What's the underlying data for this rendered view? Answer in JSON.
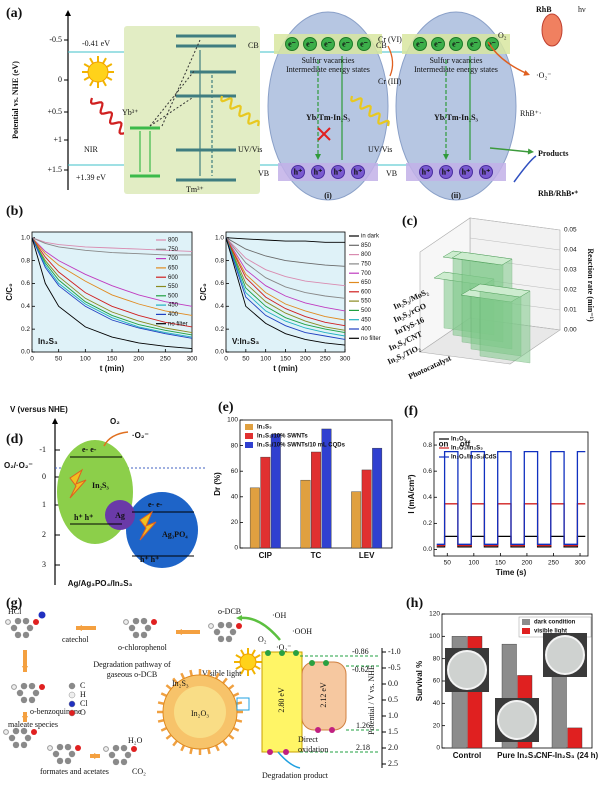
{
  "panels": [
    "(a)",
    "(b)",
    "(c)",
    "(d)",
    "(e)",
    "(f)",
    "(g)",
    "(h)"
  ],
  "a": {
    "axis": "Potential vs. NHE (eV)",
    "ticks": [
      "-0.5",
      "0",
      "+0.5",
      "+1",
      "+1.5"
    ],
    "cb_level": "-0.41 eV",
    "vb_level": "+1.39 eV",
    "nir": "NIR",
    "yb": "Yb³⁺",
    "tm": "Tm³⁺",
    "uvvis": [
      "UV/Vis",
      "UV/Vis"
    ],
    "cb": [
      "CB",
      "CB"
    ],
    "vb": [
      "VB",
      "VB"
    ],
    "vacancies": [
      "Sulfur vacancies",
      "Sulfur vacancies"
    ],
    "states": [
      "Intermediate energy states",
      "Intermediate energy states"
    ],
    "catalyst": [
      "Yb/Tm-In₂S₃",
      "Yb/Tm-In₂S₃"
    ],
    "cases": [
      "(i)",
      "(ii)"
    ],
    "electron": "e⁻",
    "hole": "h⁺",
    "cr6": "Cr (VI)",
    "cr3": "Cr (III)",
    "rhb": "RhB",
    "hv": "hν",
    "o2": "O₂",
    "superoxide": "·O₂⁻",
    "rhb_radical": "RhB⁺·",
    "products": "Products",
    "rhb_pair": "RhB/RhB•⁺"
  },
  "d": {
    "axis": "V (versus NHE)",
    "ticks": [
      "-1",
      "0",
      "1",
      "2",
      "3"
    ],
    "couple": "O₂/·O₂⁻",
    "o2": "O₂",
    "superoxide": "·O₂⁻",
    "in2s3": "In₂S₃",
    "ag": "Ag",
    "ag3po4": "Ag₃PO₄",
    "electrons": "e- e-",
    "holes": "h⁺ h⁺",
    "caption": "Ag/Ag₃PO₄/In₂S₃"
  },
  "g": {
    "hcl": "HCl",
    "catechol": "catechol",
    "chlorophenol": "o-chlorophenol",
    "dcb": "o-DCB",
    "pathway": [
      "Degradation pathway of",
      "gaseous o-DCB"
    ],
    "benzoquinone": "o-benzoquinone",
    "atoms": [
      "C",
      "H",
      "Cl",
      "O"
    ],
    "maleate": "maleate species",
    "formates": "formates and acetates",
    "h2o": "H₂O",
    "co2": "CO₂",
    "light": "Visible light",
    "oh": "·OH",
    "ooh": "·OOH",
    "o2": "O₂",
    "superoxide": "·O₂⁻",
    "shell": "In₂S₃",
    "core": "In₂O₃",
    "gap1": "2.80 eV",
    "gap2": "2.12 eV",
    "levels": [
      "-0.86",
      "-0.62",
      "1.26",
      "2.18"
    ],
    "axis": "Potential / V vs. NHE",
    "ticks": [
      "-1.0",
      "-0.5",
      "0.0",
      "0.5",
      "1.0",
      "1.5",
      "2.0",
      "2.5"
    ],
    "oxidation": [
      "Direct",
      "oxidation"
    ],
    "product": "Degradation product"
  },
  "chart_data": [
    {
      "type": "line",
      "annotation": "In₂S₃",
      "xlabel": "t (min)",
      "ylabel": "C/C₀",
      "legend": "upper right",
      "x": [
        0,
        25,
        50,
        100,
        150,
        200,
        250,
        300
      ],
      "xlim": [
        0,
        300
      ],
      "xticks": [
        0,
        50,
        100,
        150,
        200,
        250,
        300
      ],
      "ylim": [
        0,
        1.05
      ],
      "yticks": [
        {
          "value": 0,
          "label": "0.0"
        },
        0.2,
        0.4,
        0.6,
        0.8,
        {
          "value": 1,
          "label": "1.0"
        }
      ],
      "series": [
        {
          "name": "800",
          "color": "#d98bb0",
          "values": [
            1,
            0.96,
            0.94,
            0.92,
            0.91,
            0.9,
            0.89,
            0.88
          ]
        },
        {
          "name": "750",
          "color": "#888888",
          "values": [
            1,
            0.95,
            0.92,
            0.89,
            0.87,
            0.86,
            0.85,
            0.85
          ]
        },
        {
          "name": "700",
          "color": "#c03cc0",
          "values": [
            1,
            0.88,
            0.8,
            0.68,
            0.58,
            0.5,
            0.44,
            0.4
          ]
        },
        {
          "name": "650",
          "color": "#e08a20",
          "values": [
            1,
            0.86,
            0.76,
            0.62,
            0.5,
            0.42,
            0.36,
            0.32
          ]
        },
        {
          "name": "600",
          "color": "#d02020",
          "values": [
            1,
            0.83,
            0.7,
            0.52,
            0.4,
            0.32,
            0.26,
            0.22
          ]
        },
        {
          "name": "550",
          "color": "#8a8a20",
          "values": [
            1,
            0.8,
            0.66,
            0.47,
            0.35,
            0.27,
            0.21,
            0.17
          ]
        },
        {
          "name": "500",
          "color": "#20a040",
          "values": [
            1,
            0.78,
            0.63,
            0.44,
            0.32,
            0.24,
            0.19,
            0.15
          ]
        },
        {
          "name": "450",
          "color": "#20b0c0",
          "values": [
            1,
            0.76,
            0.6,
            0.42,
            0.3,
            0.22,
            0.17,
            0.13
          ]
        },
        {
          "name": "400",
          "color": "#2040c0",
          "values": [
            1,
            0.74,
            0.58,
            0.4,
            0.28,
            0.21,
            0.16,
            0.12
          ]
        },
        {
          "name": "no filter",
          "color": "#000000",
          "values": [
            1,
            0.6,
            0.4,
            0.22,
            0.13,
            0.08,
            0.05,
            0.03
          ]
        }
      ]
    },
    {
      "type": "line",
      "annotation": "V:In₂S₃",
      "xlabel": "t (min)",
      "ylabel": "C/C₀",
      "legend": "outside right",
      "x": [
        0,
        50,
        100,
        150,
        200,
        250,
        300
      ],
      "xlim": [
        0,
        300
      ],
      "xticks": [
        0,
        50,
        100,
        150,
        200,
        250,
        300
      ],
      "ylim": [
        0,
        1.05
      ],
      "yticks": [
        {
          "value": 0,
          "label": "0.0"
        },
        0.2,
        0.4,
        0.6,
        0.8,
        {
          "value": 1,
          "label": "1.0"
        }
      ],
      "series": [
        {
          "name": "in dark",
          "color": "#000000",
          "values": [
            1,
            0.99,
            0.98,
            0.97,
            0.97,
            0.96,
            0.96
          ]
        },
        {
          "name": "850",
          "color": "#6a6a6a",
          "values": [
            1,
            0.9,
            0.84,
            0.8,
            0.78,
            0.76,
            0.75
          ]
        },
        {
          "name": "800",
          "color": "#d98bb0",
          "values": [
            1,
            0.82,
            0.72,
            0.66,
            0.62,
            0.6,
            0.58
          ]
        },
        {
          "name": "750",
          "color": "#888888",
          "values": [
            1,
            0.78,
            0.65,
            0.57,
            0.52,
            0.49,
            0.47
          ]
        },
        {
          "name": "700",
          "color": "#c03cc0",
          "values": [
            1,
            0.72,
            0.58,
            0.49,
            0.43,
            0.39,
            0.36
          ]
        },
        {
          "name": "650",
          "color": "#e08a20",
          "values": [
            1,
            0.68,
            0.52,
            0.42,
            0.36,
            0.31,
            0.28
          ]
        },
        {
          "name": "600",
          "color": "#d02020",
          "values": [
            1,
            0.65,
            0.48,
            0.38,
            0.31,
            0.26,
            0.23
          ]
        },
        {
          "name": "550",
          "color": "#8a8a20",
          "values": [
            1,
            0.6,
            0.44,
            0.34,
            0.27,
            0.22,
            0.19
          ]
        },
        {
          "name": "500",
          "color": "#20a040",
          "values": [
            1,
            0.56,
            0.4,
            0.3,
            0.24,
            0.2,
            0.17
          ]
        },
        {
          "name": "450",
          "color": "#20b0c0",
          "values": [
            1,
            0.52,
            0.36,
            0.27,
            0.21,
            0.17,
            0.14
          ]
        },
        {
          "name": "400",
          "color": "#2040c0",
          "values": [
            1,
            0.48,
            0.32,
            0.23,
            0.17,
            0.14,
            0.11
          ]
        },
        {
          "name": "no filter",
          "color": "#000000",
          "values": [
            1,
            0.4,
            0.25,
            0.16,
            0.11,
            0.08,
            0.06
          ]
        }
      ]
    },
    {
      "type": "bar3d",
      "xlabel": "Photocatalyst",
      "ylabel": "Reaction rate (min⁻¹)",
      "color": "#7fc98a",
      "categories": [
        "In₂S₃/MoS₂",
        "In₂S₃/rGO",
        "InTyS-16",
        "In₂S₃/CNT",
        "In₂S₃/TiO₂"
      ],
      "values": [
        0.028,
        0.042,
        0.045,
        0.03,
        0.036
      ],
      "ylim": [
        0,
        0.05
      ],
      "yticks": [
        {
          "value": 0,
          "label": "0.00"
        },
        0.01,
        0.02,
        0.03,
        0.04,
        0.05
      ]
    },
    {
      "type": "bar",
      "ylabel": "Dr (%)",
      "legend": "upper left",
      "categories": [
        "CIP",
        "TC",
        "LEV"
      ],
      "ylim": [
        0,
        100
      ],
      "yticks": [
        0,
        20,
        40,
        60,
        80,
        100
      ],
      "series": [
        {
          "name": "In₂S₃",
          "color": "#e0a040",
          "values": [
            47,
            53,
            44
          ]
        },
        {
          "name": "In₂S₃/10% SWNTs",
          "color": "#e03030",
          "values": [
            71,
            75,
            61
          ]
        },
        {
          "name": "In₂S₃/10% SWNTs/10 mL CQDs",
          "color": "#3040d0",
          "values": [
            89,
            93,
            78
          ]
        }
      ]
    },
    {
      "type": "line",
      "xlabel": "Time (s)",
      "ylabel": "I (mA/cm²)",
      "legend": "upper left",
      "annotations": [
        "on",
        "off"
      ],
      "x": [
        30,
        45,
        45,
        70,
        70,
        95,
        95,
        120,
        120,
        145,
        145,
        170,
        170,
        195,
        195,
        220,
        220,
        245,
        245,
        270,
        270,
        295,
        295,
        310
      ],
      "xlim": [
        25,
        315
      ],
      "xticks": [
        50,
        100,
        150,
        200,
        250,
        300
      ],
      "ylim": [
        -0.05,
        0.9
      ],
      "yticks": [
        {
          "value": 0,
          "label": "0.0"
        },
        0.2,
        0.4,
        0.6,
        0.8
      ],
      "series": [
        {
          "name": "In₂O₃",
          "color": "#000000",
          "values": [
            0.02,
            0.02,
            0.1,
            0.1,
            0.02,
            0.02,
            0.1,
            0.1,
            0.02,
            0.02,
            0.1,
            0.1,
            0.02,
            0.02,
            0.1,
            0.1,
            0.02,
            0.02,
            0.1,
            0.1,
            0.02,
            0.02,
            0.1,
            0.1
          ]
        },
        {
          "name": "In₂O₃/In₂S₃",
          "color": "#d02020",
          "values": [
            0.03,
            0.03,
            0.35,
            0.35,
            0.03,
            0.03,
            0.35,
            0.35,
            0.03,
            0.03,
            0.35,
            0.35,
            0.03,
            0.03,
            0.35,
            0.35,
            0.03,
            0.03,
            0.35,
            0.35,
            0.03,
            0.03,
            0.35,
            0.35
          ]
        },
        {
          "name": "In₂O₃/In₂S₃/CdS",
          "color": "#1030c0",
          "values": [
            0.04,
            0.04,
            0.75,
            0.75,
            0.04,
            0.04,
            0.75,
            0.75,
            0.04,
            0.04,
            0.75,
            0.75,
            0.04,
            0.04,
            0.75,
            0.75,
            0.04,
            0.04,
            0.75,
            0.75,
            0.04,
            0.04,
            0.75,
            0.75
          ]
        }
      ]
    },
    {
      "type": "bar",
      "ylabel": "Survival %",
      "legend": "upper right",
      "categories": [
        "Control",
        "Pure In₂S₃",
        "CNF-In₂S₃ (24 h)"
      ],
      "ylim": [
        0,
        120
      ],
      "yticks": [
        0,
        20,
        40,
        60,
        80,
        100,
        120
      ],
      "series": [
        {
          "name": "dark condition",
          "color": "#8c8c8c",
          "values": [
            100,
            93,
            91
          ]
        },
        {
          "name": "visible light",
          "color": "#e02020",
          "values": [
            100,
            65,
            18
          ]
        }
      ]
    }
  ]
}
